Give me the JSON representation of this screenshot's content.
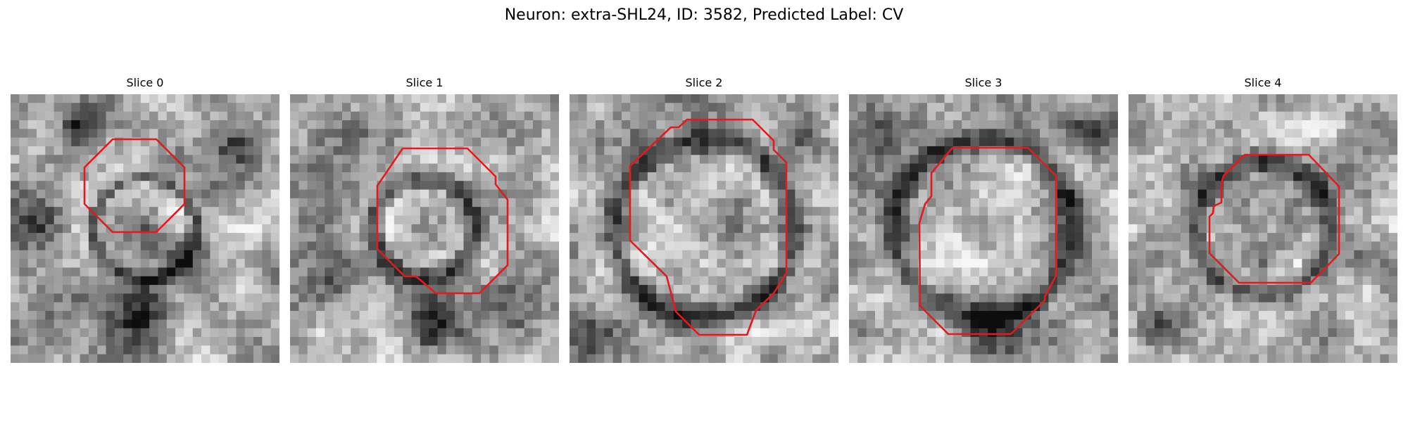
{
  "figure": {
    "title": "Neuron: extra-SHL24, ID: 3582, Predicted Label: CV"
  },
  "panels": [
    {
      "title": "Slice 0"
    },
    {
      "title": "Slice 1"
    },
    {
      "title": "Slice 2"
    },
    {
      "title": "Slice 3"
    },
    {
      "title": "Slice 4"
    }
  ],
  "colors": {
    "contour": "#e41a1c",
    "colormap": "grayscale"
  }
}
